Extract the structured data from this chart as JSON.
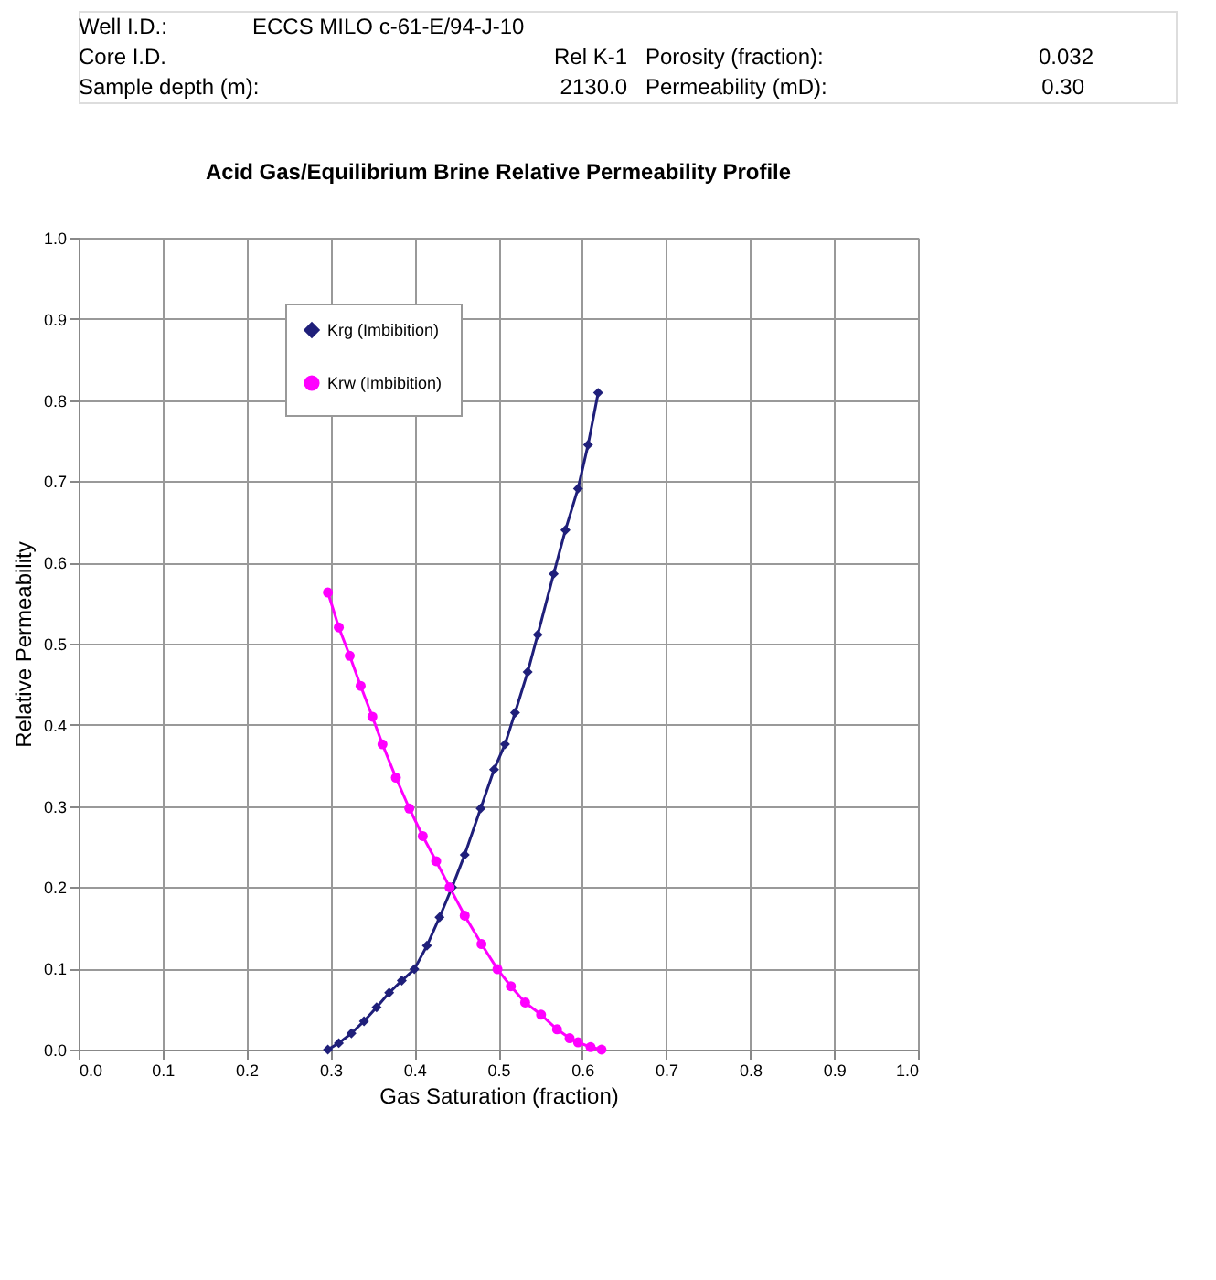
{
  "chart_data": {
    "type": "line",
    "title": "Acid Gas/Equilibrium Brine  Relative Permeability Profile",
    "xlabel": "Gas Saturation (fraction)",
    "ylabel": "Relative Permeability",
    "annotations": [
      "Well I.D.:",
      "ECCS MILO c-61-E/94-J-10",
      "Core I.D.",
      "Rel K-1",
      "Porosity (fraction):",
      "0.032",
      "Sample depth (m):",
      "2130.0",
      "Permeability (mD):",
      "0.30"
    ],
    "xlim": [
      0,
      1
    ],
    "xticks": [
      {
        "value": 0,
        "label": "0.0"
      },
      0.1,
      0.2,
      0.3,
      0.4,
      0.5,
      0.6,
      0.7,
      0.8,
      0.9,
      {
        "value": 1,
        "label": "1.0"
      }
    ],
    "ylim": [
      0,
      1
    ],
    "yticks": [
      {
        "value": 0,
        "label": "0.0"
      },
      0.1,
      0.2,
      0.3,
      0.4,
      0.5,
      0.6,
      0.7,
      0.8,
      0.9,
      {
        "value": 1,
        "label": "1.0"
      }
    ],
    "grid": true,
    "legend": "top left",
    "line_style": "solid",
    "series": [
      {
        "name": "Krg (Imbibition)",
        "color": "#1f1f7a",
        "marker": "diamond",
        "x": [
          0.297,
          0.31,
          0.325,
          0.34,
          0.355,
          0.37,
          0.385,
          0.4,
          0.415,
          0.43,
          0.445,
          0.46,
          0.479,
          0.495,
          0.508,
          0.52,
          0.535,
          0.547,
          0.566,
          0.58,
          0.595,
          0.607,
          0.619
        ],
        "values": [
          0,
          0.008,
          0.02,
          0.035,
          0.052,
          0.07,
          0.085,
          0.099,
          0.128,
          0.163,
          0.2,
          0.24,
          0.297,
          0.345,
          0.376,
          0.415,
          0.465,
          0.511,
          0.586,
          0.64,
          0.691,
          0.745,
          0.809
        ]
      },
      {
        "name": "Krw (Imbibition)",
        "color": "#ff00ff",
        "marker": "circle",
        "x": [
          0.297,
          0.31,
          0.323,
          0.336,
          0.35,
          0.362,
          0.378,
          0.394,
          0.41,
          0.426,
          0.442,
          0.46,
          0.48,
          0.499,
          0.515,
          0.532,
          0.551,
          0.57,
          0.585,
          0.595,
          0.61,
          0.623
        ],
        "values": [
          0.563,
          0.52,
          0.485,
          0.448,
          0.41,
          0.376,
          0.335,
          0.297,
          0.263,
          0.232,
          0.2,
          0.165,
          0.13,
          0.099,
          0.078,
          0.058,
          0.043,
          0.025,
          0.014,
          0.009,
          0.003,
          0
        ]
      }
    ]
  }
}
